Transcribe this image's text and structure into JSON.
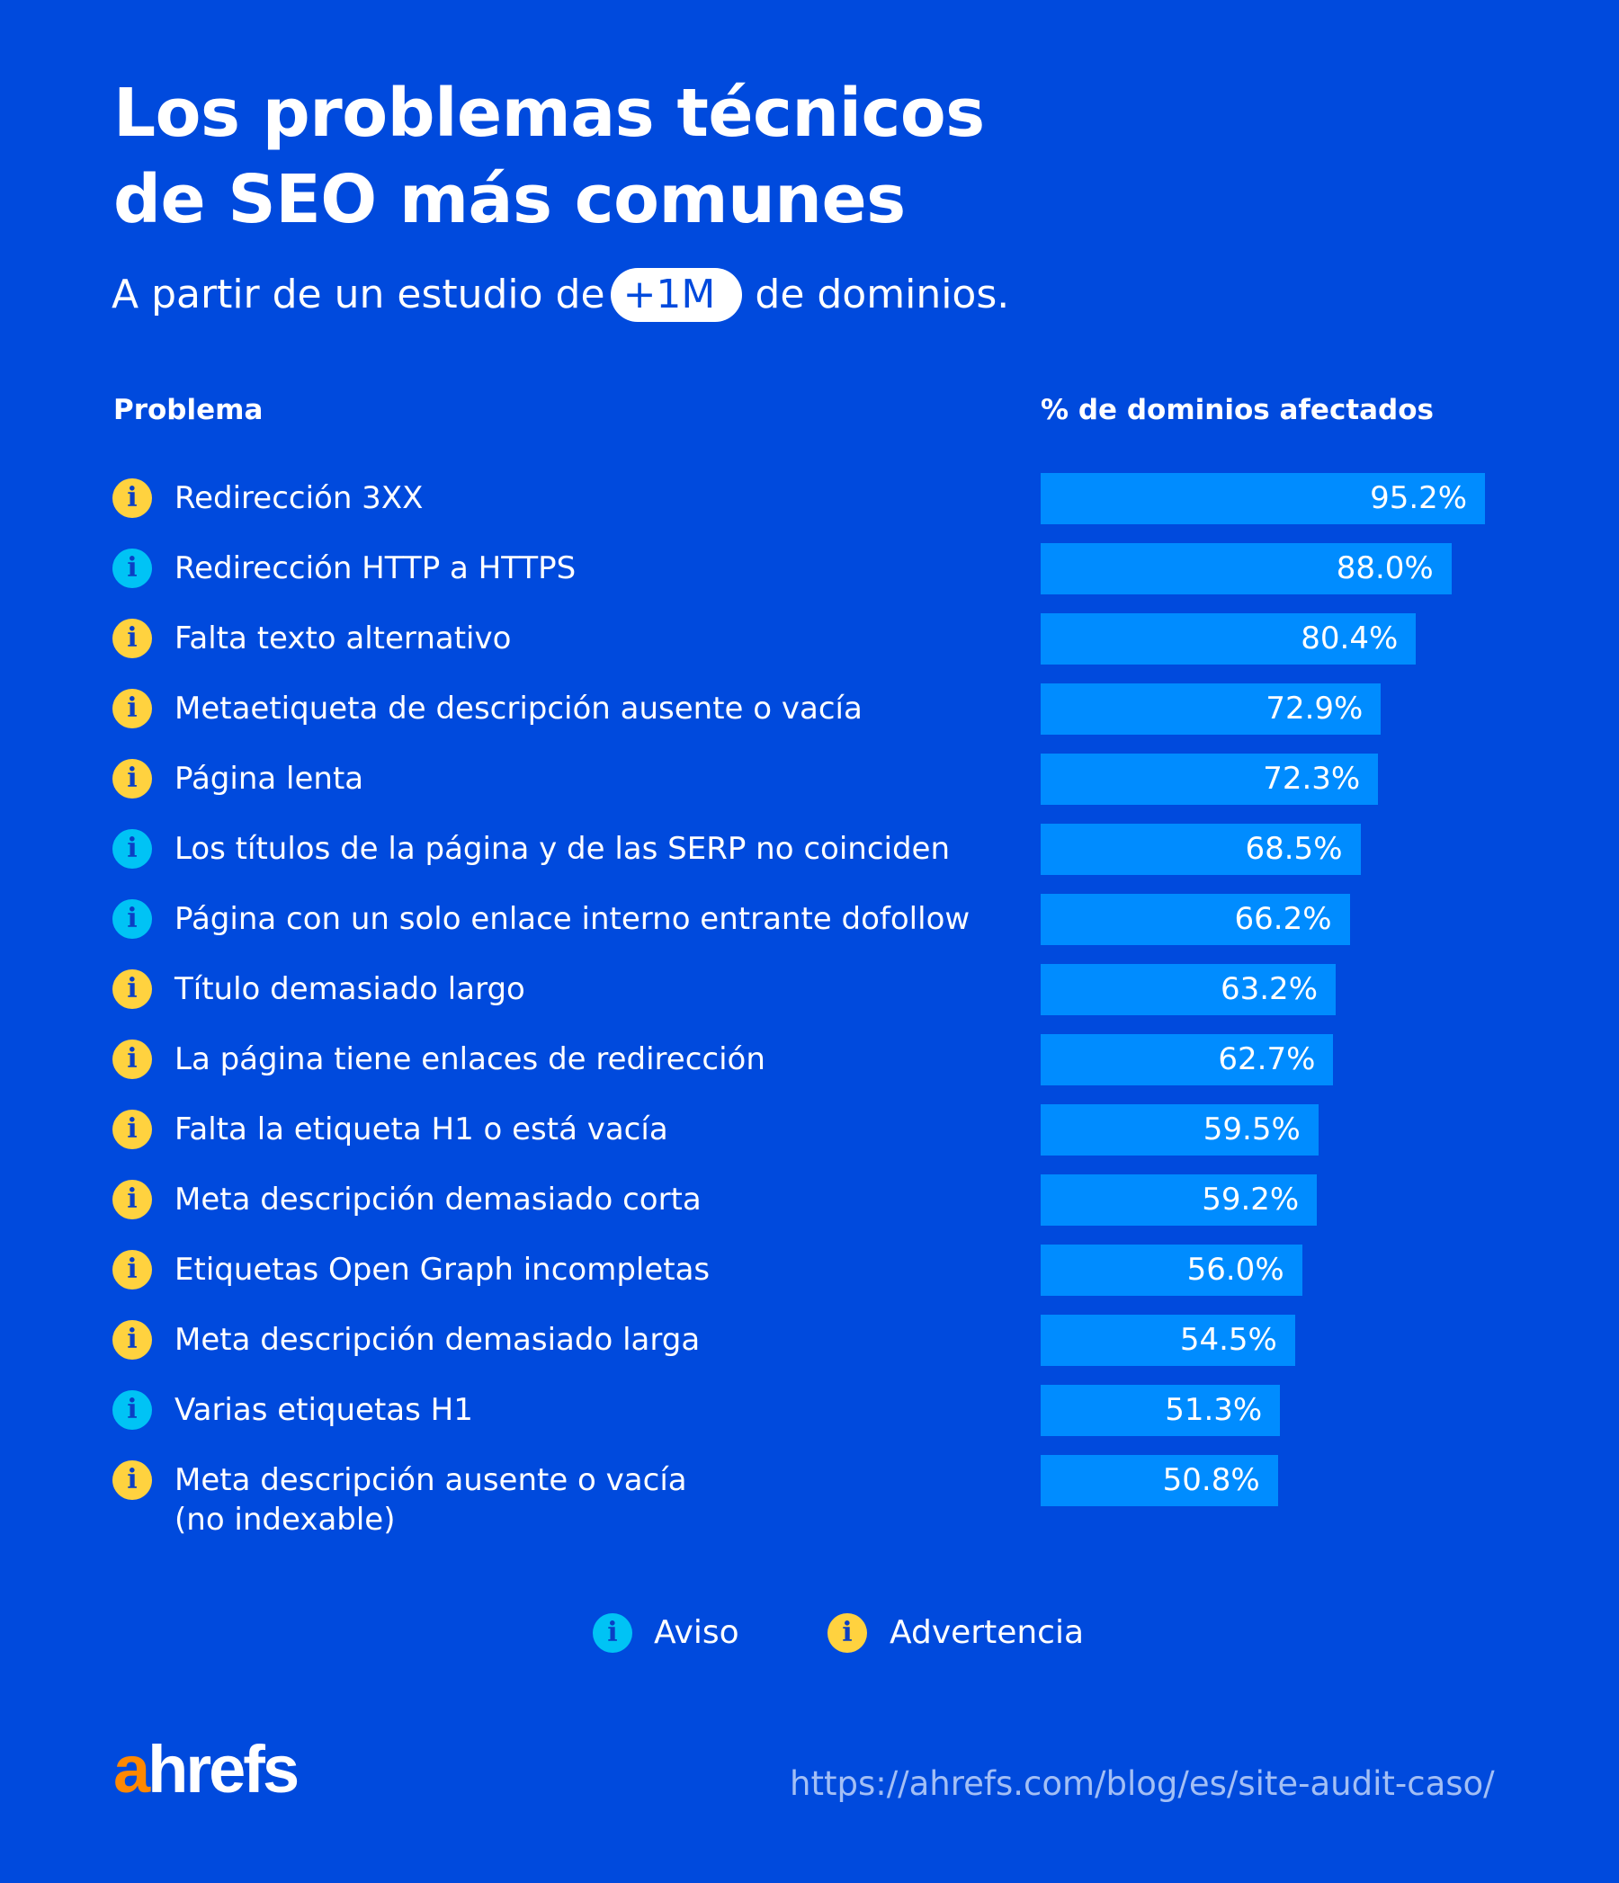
{
  "title_line1": "Los problemas técnicos",
  "title_line2": "de SEO más comunes",
  "subtitle": {
    "before": "A partir de un estudio de",
    "highlight": "+1M",
    "after": "de dominios."
  },
  "colors": {
    "background": "#004add",
    "bar": "#008cff",
    "aviso": "#00c3f5",
    "advertencia": "#ffd23f",
    "logo_accent": "#ff8800"
  },
  "chart_data": {
    "type": "bar",
    "orientation": "horizontal",
    "col_header_problem": "Problema",
    "col_header_value": "% de dominios afectados",
    "xlim": [
      0,
      100
    ],
    "unit": "%",
    "rows": [
      {
        "label": "Redirección 3XX",
        "value": 95.2,
        "display": "95.2%",
        "type": "advertencia"
      },
      {
        "label": "Redirección HTTP a HTTPS",
        "value": 88.0,
        "display": "88.0%",
        "type": "aviso"
      },
      {
        "label": "Falta texto alternativo",
        "value": 80.4,
        "display": "80.4%",
        "type": "advertencia"
      },
      {
        "label": "Metaetiqueta de descripción ausente o vacía",
        "value": 72.9,
        "display": "72.9%",
        "type": "advertencia"
      },
      {
        "label": "Página lenta",
        "value": 72.3,
        "display": "72.3%",
        "type": "advertencia"
      },
      {
        "label": "Los títulos de la página y de las SERP no coinciden",
        "value": 68.5,
        "display": "68.5%",
        "type": "aviso"
      },
      {
        "label": "Página con un solo enlace interno entrante dofollow",
        "value": 66.2,
        "display": "66.2%",
        "type": "aviso"
      },
      {
        "label": "Título demasiado largo",
        "value": 63.2,
        "display": "63.2%",
        "type": "advertencia"
      },
      {
        "label": "La página tiene enlaces de redirección",
        "value": 62.7,
        "display": "62.7%",
        "type": "advertencia"
      },
      {
        "label": "Falta la etiqueta H1 o está vacía",
        "value": 59.5,
        "display": "59.5%",
        "type": "advertencia"
      },
      {
        "label": "Meta descripción demasiado corta",
        "value": 59.2,
        "display": "59.2%",
        "type": "advertencia"
      },
      {
        "label": "Etiquetas Open Graph incompletas",
        "value": 56.0,
        "display": "56.0%",
        "type": "advertencia"
      },
      {
        "label": "Meta descripción demasiado larga",
        "value": 54.5,
        "display": "54.5%",
        "type": "advertencia"
      },
      {
        "label": "Varias etiquetas H1",
        "value": 51.3,
        "display": "51.3%",
        "type": "aviso"
      },
      {
        "label": "Meta descripción ausente o vacía (no indexable)",
        "label_line1": "Meta descripción ausente o vacía",
        "label_line2": "(no indexable)",
        "value": 50.8,
        "display": "50.8%",
        "type": "advertencia"
      }
    ],
    "legend": [
      {
        "key": "aviso",
        "label": "Aviso"
      },
      {
        "key": "advertencia",
        "label": "Advertencia"
      }
    ],
    "legend_position": "bottom"
  },
  "icon_glyph": "i",
  "logo": {
    "accent": "a",
    "rest": "hrefs"
  },
  "url": "https://ahrefs.com/blog/es/site-audit-caso/"
}
